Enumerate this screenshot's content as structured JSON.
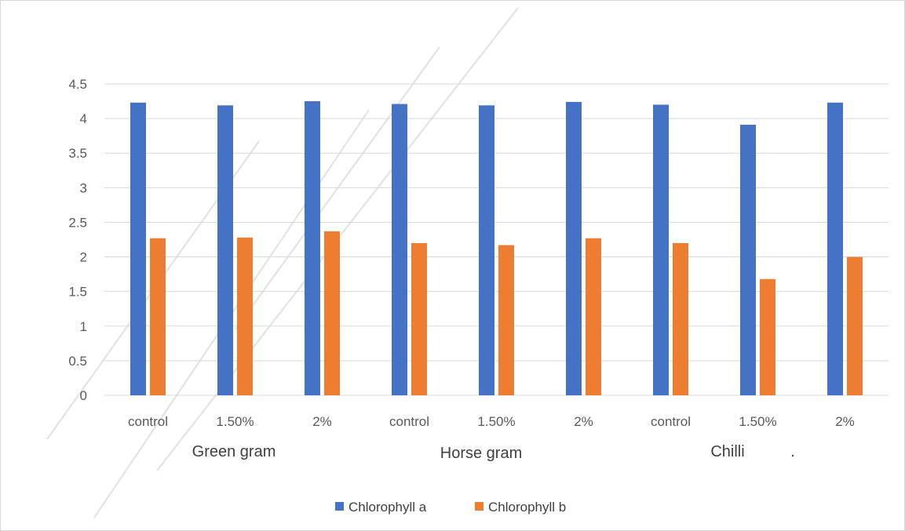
{
  "chart_data": {
    "type": "bar",
    "title": "",
    "xlabel": "",
    "ylabel": "",
    "ylim": [
      0,
      4.5
    ],
    "yticks": [
      "0",
      "0.5",
      "1",
      "1.5",
      "2",
      "2.5",
      "3",
      "3.5",
      "4",
      "4.5"
    ],
    "grid": true,
    "legend_position": "bottom",
    "categories": [
      "control",
      "1.50%",
      "2%",
      "control",
      "1.50%",
      "2%",
      "control",
      "1.50%",
      "2%"
    ],
    "groups": [
      {
        "label": "Green gram",
        "categories": [
          "control",
          "1.50%",
          "2%"
        ]
      },
      {
        "label": "Horse gram",
        "categories": [
          "control",
          "1.50%",
          "2%"
        ]
      },
      {
        "label": "Chilli",
        "categories": [
          "control",
          "1.50%",
          "2%"
        ]
      }
    ],
    "stray_mark": ".",
    "series": [
      {
        "name": "Chlorophyll a",
        "color": "#4472c4",
        "values": [
          4.23,
          4.19,
          4.25,
          4.21,
          4.19,
          4.24,
          4.2,
          3.91,
          4.23
        ]
      },
      {
        "name": "Chlorophyll b",
        "color": "#ed7d31",
        "values": [
          2.27,
          2.28,
          2.37,
          2.2,
          2.17,
          2.27,
          2.2,
          1.68,
          2.0
        ]
      }
    ]
  }
}
